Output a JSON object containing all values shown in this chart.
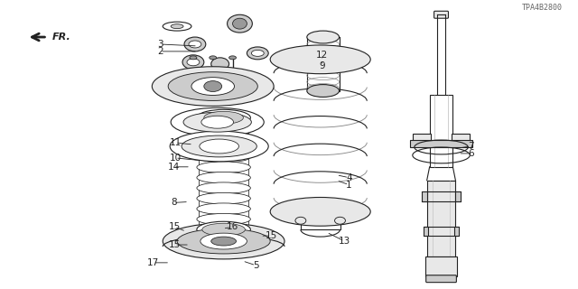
{
  "bg_color": "#ffffff",
  "fig_width": 6.4,
  "fig_height": 3.2,
  "dpi": 100,
  "diagram_code": "TPA4B2800",
  "fr_label": "FR.",
  "line_color": "#222222",
  "fill_light": "#e8e8e8",
  "fill_mid": "#cccccc",
  "fill_dark": "#999999"
}
